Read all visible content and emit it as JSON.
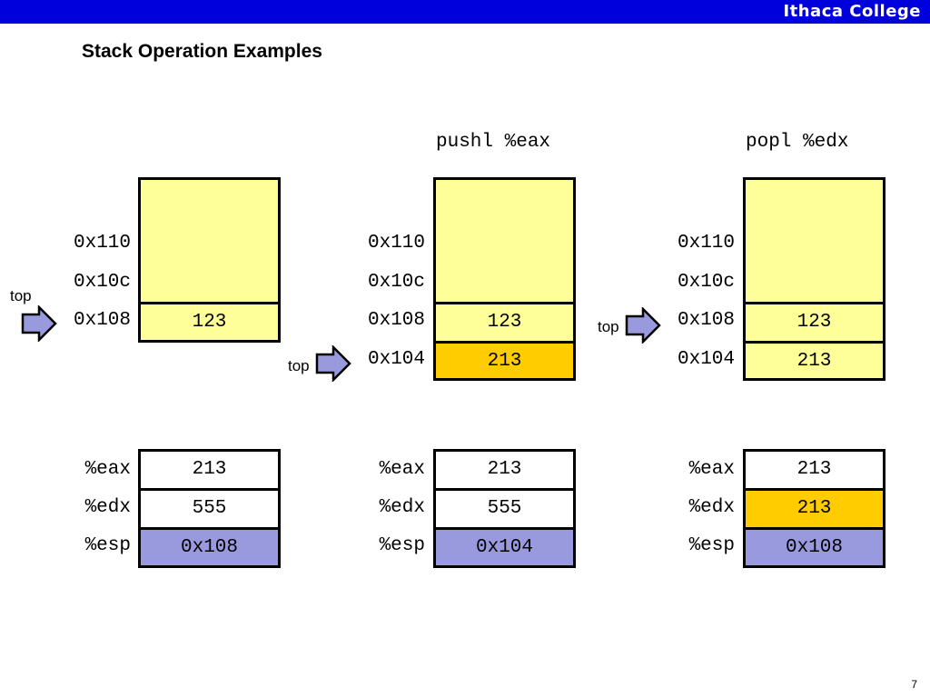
{
  "header": {
    "brand": "Ithaca College"
  },
  "slide": {
    "title": "Stack Operation Examples",
    "page_number": "7"
  },
  "colors": {
    "stack_fill": "#ffff99",
    "highlight_fill": "#ffcc00",
    "esp_fill": "#9999dd",
    "bar": "#0000dd",
    "arrow_fill": "#9999dd"
  },
  "top_label": "top",
  "columns": [
    {
      "instruction": "",
      "stack_addresses": [
        "0x110",
        "0x10c",
        "0x108"
      ],
      "stack_values": [
        "123"
      ],
      "registers": [
        {
          "name": "%eax",
          "value": "213"
        },
        {
          "name": "%edx",
          "value": "555"
        },
        {
          "name": "%esp",
          "value": "0x108"
        }
      ]
    },
    {
      "instruction": "pushl %eax",
      "stack_addresses": [
        "0x110",
        "0x10c",
        "0x108",
        "0x104"
      ],
      "stack_values": [
        "123",
        "213"
      ],
      "registers": [
        {
          "name": "%eax",
          "value": "213"
        },
        {
          "name": "%edx",
          "value": "555"
        },
        {
          "name": "%esp",
          "value": "0x104"
        }
      ]
    },
    {
      "instruction": "popl %edx",
      "stack_addresses": [
        "0x110",
        "0x10c",
        "0x108",
        "0x104"
      ],
      "stack_values": [
        "123",
        "213"
      ],
      "registers": [
        {
          "name": "%eax",
          "value": "213"
        },
        {
          "name": "%edx",
          "value": "213"
        },
        {
          "name": "%esp",
          "value": "0x108"
        }
      ]
    }
  ]
}
